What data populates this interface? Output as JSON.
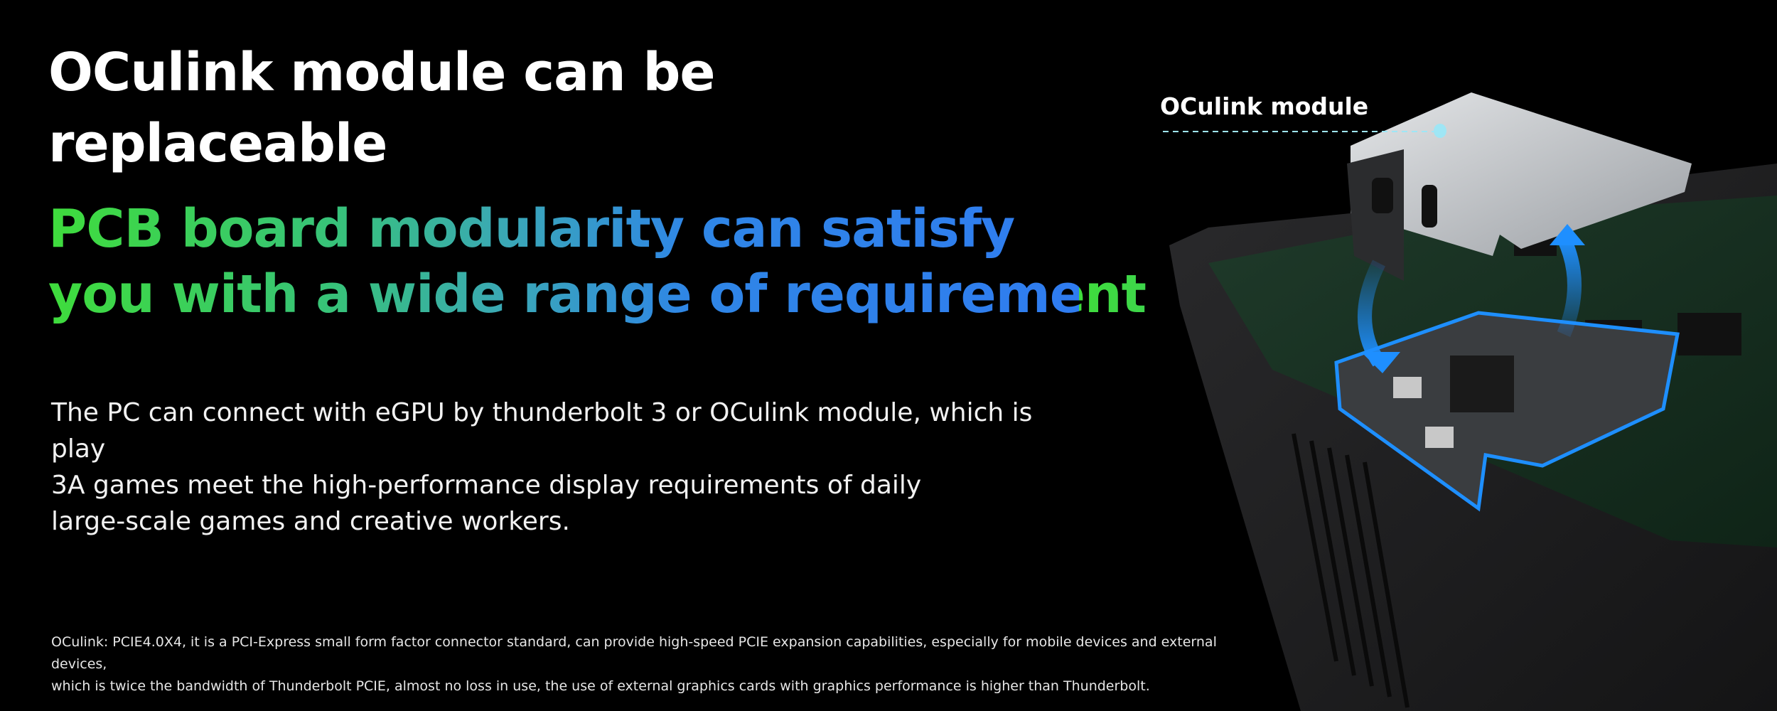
{
  "headline": {
    "line1": "OCulink module can be",
    "line2": "replaceable"
  },
  "subheadline": {
    "line1": "PCB board modularity can satisfy",
    "line2": "you with a wide range of requirement",
    "gradient_colors": [
      "#3fdc3c",
      "#3aa7b8",
      "#2f7cf0"
    ]
  },
  "description": {
    "line1": "The PC can connect with eGPU by thunderbolt 3 or OCulink module, which is play",
    "line2": "3A games meet the high-performance display requirements of daily",
    "line3": "large-scale games and creative workers."
  },
  "footnote": {
    "line1": "OCulink:  PCIE4.0X4, it is a PCI-Express small form factor connector standard, can provide high-speed PCIE expansion capabilities, especially for mobile devices and external devices,",
    "line2": "which is twice the bandwidth of Thunderbolt PCIE, almost no loss in use, the use of external graphics cards with graphics performance is higher than Thunderbolt."
  },
  "product_image": {
    "callout_label": "OCulink module",
    "accent_color": "#1e8fff",
    "callout_color": "#9fe6f5"
  }
}
